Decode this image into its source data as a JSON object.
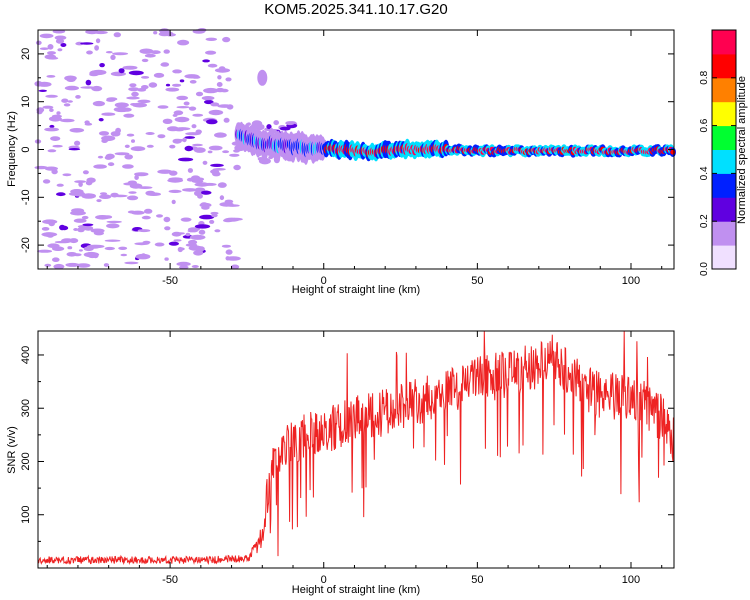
{
  "title": "KOM5.2025.341.10.17.G20",
  "chart_data": [
    {
      "type": "heatmap",
      "name": "spectrogram",
      "xlabel": "Height of straight line (km)",
      "ylabel": "Frequency (Hz)",
      "xlim": [
        -93,
        114
      ],
      "ylim": [
        -25,
        25
      ],
      "xticks": [
        -50,
        0,
        50,
        100
      ],
      "xtick_labels": [
        "-50",
        "0",
        "50",
        "100"
      ],
      "yticks": [
        -20,
        -10,
        0,
        10,
        20
      ],
      "ytick_labels": [
        "-20",
        "-10",
        "0",
        "10",
        "20"
      ],
      "colorbar": {
        "label": "Normalized spectral amplitude",
        "range": [
          0,
          1
        ],
        "ticks": [
          0.0,
          0.2,
          0.4,
          0.6,
          0.8
        ],
        "tick_labels": [
          "0.0",
          "0.2",
          "0.4",
          "0.6",
          "0.8"
        ],
        "colors": [
          "#f0e0ff",
          "#c090f0",
          "#6000e0",
          "#0020ff",
          "#00e0ff",
          "#00ff30",
          "#ffff00",
          "#ff8000",
          "#ff0000",
          "#ff0050"
        ]
      },
      "noise_region_end_km": -28,
      "ridge": [
        {
          "x": -28,
          "freq": 3.0,
          "amp": 0.35
        },
        {
          "x": -22,
          "freq": 1.5,
          "amp": 0.3
        },
        {
          "x": -15,
          "freq": 1.0,
          "amp": 0.35
        },
        {
          "x": -5,
          "freq": 0.3,
          "amp": 0.45
        },
        {
          "x": 5,
          "freq": 0.0,
          "amp": 0.45
        },
        {
          "x": 15,
          "freq": -0.5,
          "amp": 0.5
        },
        {
          "x": 25,
          "freq": 0.0,
          "amp": 0.6
        },
        {
          "x": 40,
          "freq": 0.0,
          "amp": 0.7
        },
        {
          "x": 55,
          "freq": -0.3,
          "amp": 0.75
        },
        {
          "x": 70,
          "freq": -0.3,
          "amp": 0.85
        },
        {
          "x": 85,
          "freq": -0.3,
          "amp": 0.95
        },
        {
          "x": 100,
          "freq": -0.3,
          "amp": 0.97
        },
        {
          "x": 108,
          "freq": -0.2,
          "amp": 0.6
        },
        {
          "x": 114,
          "freq": -0.3,
          "amp": 0.9
        }
      ]
    },
    {
      "type": "line",
      "name": "snr",
      "xlabel": "Height of straight line (km)",
      "ylabel": "SNR (v/v)",
      "xlim": [
        -93,
        114
      ],
      "ylim": [
        0,
        445
      ],
      "xticks": [
        -50,
        0,
        50,
        100
      ],
      "xtick_labels": [
        "-50",
        "0",
        "50",
        "100"
      ],
      "yticks": [
        100,
        200,
        300,
        400
      ],
      "ytick_labels": [
        "100",
        "200",
        "300",
        "400"
      ],
      "color": "#ee2222",
      "envelope": {
        "x": [
          -93,
          -40,
          -25,
          -20,
          -17,
          -12,
          -5,
          0,
          10,
          20,
          30,
          40,
          50,
          60,
          70,
          75,
          80,
          90,
          100,
          110,
          114
        ],
        "y": [
          12,
          12,
          15,
          60,
          200,
          240,
          260,
          265,
          290,
          300,
          320,
          345,
          360,
          375,
          390,
          405,
          370,
          330,
          335,
          290,
          250
        ]
      }
    }
  ]
}
